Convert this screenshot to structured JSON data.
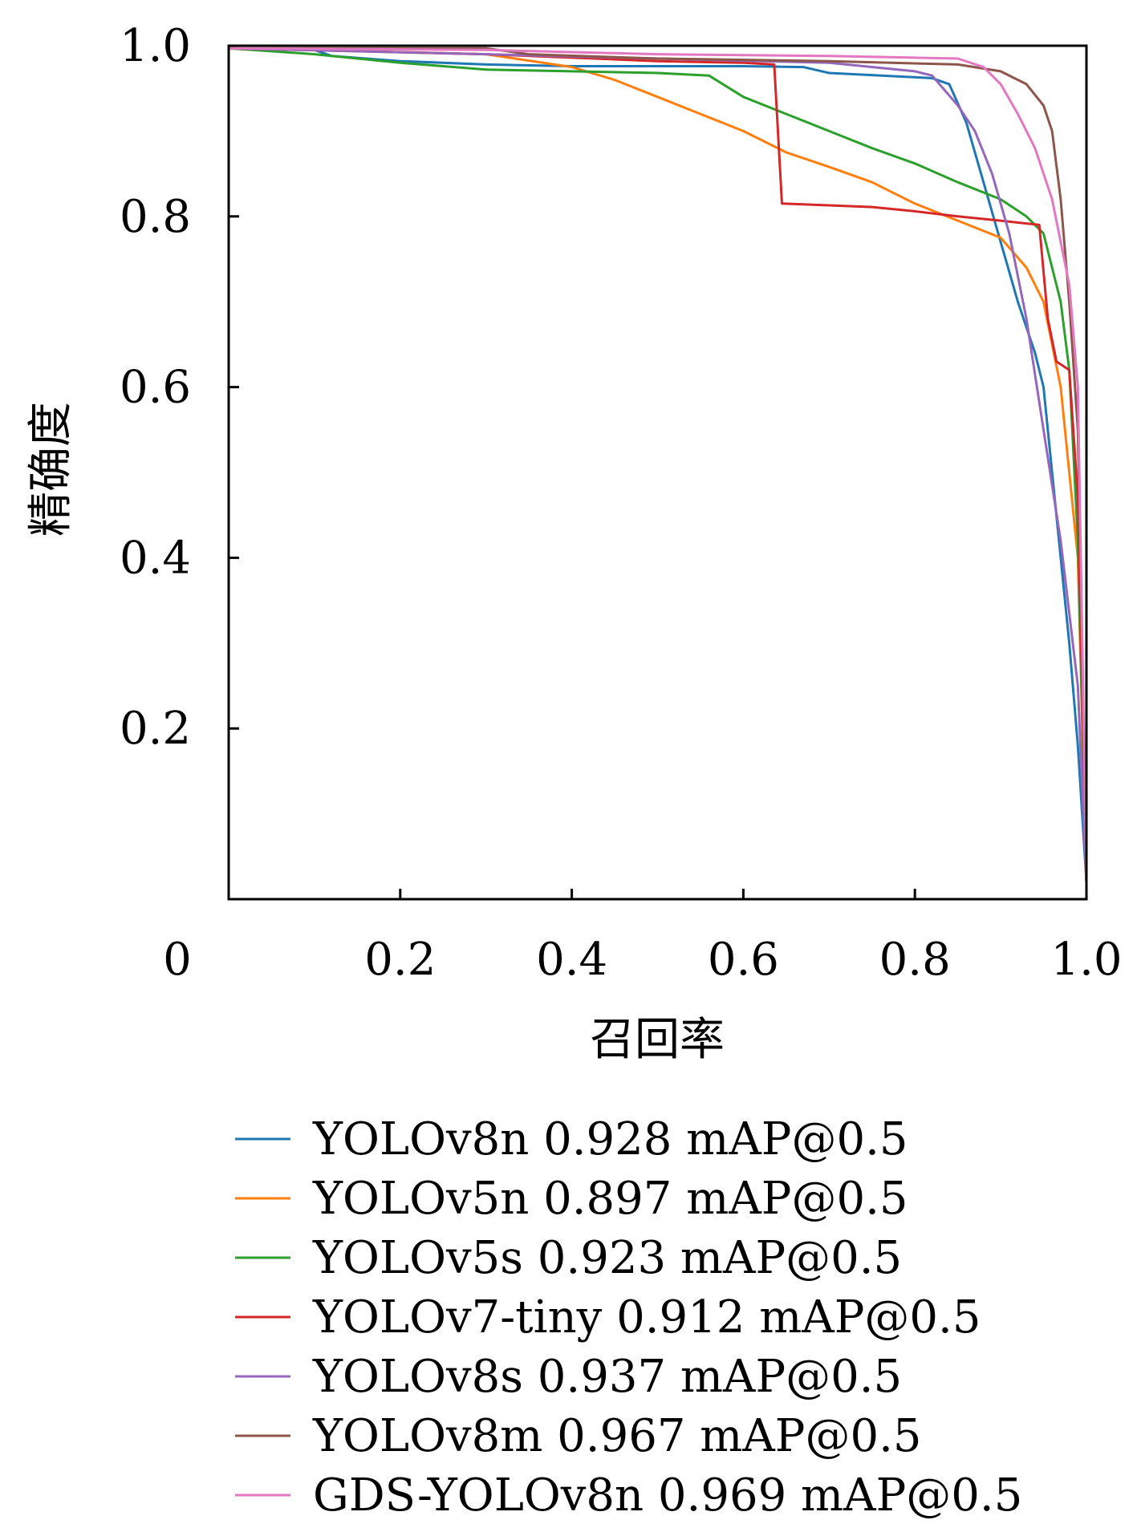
{
  "chart_data": {
    "type": "line",
    "title": "",
    "xlabel": "召回率",
    "ylabel": "精确度",
    "xlim": [
      0,
      1
    ],
    "ylim": [
      0,
      1
    ],
    "x_origin_label": "0",
    "xticks": [
      "0.2",
      "0.4",
      "0.6",
      "0.8",
      "1.0"
    ],
    "yticks": [
      "0.2",
      "0.4",
      "0.6",
      "0.8",
      "1.0"
    ],
    "grid": false,
    "legend_position": "below",
    "series": [
      {
        "name": "YOLOv8n 0.928 mAP@0.5",
        "color": "#1f77b4",
        "points": [
          [
            0,
            0.997
          ],
          [
            0.1,
            0.995
          ],
          [
            0.12,
            0.988
          ],
          [
            0.2,
            0.982
          ],
          [
            0.3,
            0.978
          ],
          [
            0.4,
            0.976
          ],
          [
            0.6,
            0.976
          ],
          [
            0.67,
            0.975
          ],
          [
            0.7,
            0.968
          ],
          [
            0.82,
            0.962
          ],
          [
            0.84,
            0.955
          ],
          [
            0.86,
            0.91
          ],
          [
            0.88,
            0.84
          ],
          [
            0.9,
            0.77
          ],
          [
            0.92,
            0.7
          ],
          [
            0.94,
            0.64
          ],
          [
            0.95,
            0.6
          ],
          [
            0.96,
            0.5
          ],
          [
            0.97,
            0.4
          ],
          [
            0.98,
            0.3
          ],
          [
            0.99,
            0.18
          ],
          [
            1.0,
            0.02
          ]
        ]
      },
      {
        "name": "YOLOv5n 0.897 mAP@0.5",
        "color": "#ff7f0e",
        "points": [
          [
            0,
            0.997
          ],
          [
            0.1,
            0.995
          ],
          [
            0.3,
            0.99
          ],
          [
            0.4,
            0.975
          ],
          [
            0.45,
            0.96
          ],
          [
            0.5,
            0.94
          ],
          [
            0.55,
            0.92
          ],
          [
            0.6,
            0.9
          ],
          [
            0.65,
            0.875
          ],
          [
            0.7,
            0.858
          ],
          [
            0.75,
            0.84
          ],
          [
            0.8,
            0.815
          ],
          [
            0.85,
            0.795
          ],
          [
            0.9,
            0.775
          ],
          [
            0.93,
            0.74
          ],
          [
            0.95,
            0.7
          ],
          [
            0.97,
            0.6
          ],
          [
            0.98,
            0.5
          ],
          [
            0.99,
            0.4
          ],
          [
            1.0,
            0.02
          ]
        ]
      },
      {
        "name": "YOLOv5s 0.923 mAP@0.5",
        "color": "#2ca02c",
        "points": [
          [
            0,
            0.997
          ],
          [
            0.1,
            0.99
          ],
          [
            0.2,
            0.98
          ],
          [
            0.3,
            0.972
          ],
          [
            0.4,
            0.97
          ],
          [
            0.5,
            0.968
          ],
          [
            0.56,
            0.965
          ],
          [
            0.6,
            0.94
          ],
          [
            0.65,
            0.92
          ],
          [
            0.7,
            0.9
          ],
          [
            0.75,
            0.88
          ],
          [
            0.8,
            0.862
          ],
          [
            0.85,
            0.84
          ],
          [
            0.9,
            0.82
          ],
          [
            0.93,
            0.8
          ],
          [
            0.95,
            0.78
          ],
          [
            0.97,
            0.7
          ],
          [
            0.98,
            0.62
          ],
          [
            0.99,
            0.42
          ],
          [
            1.0,
            0.02
          ]
        ]
      },
      {
        "name": "YOLOv7-tiny 0.912 mAP@0.5",
        "color": "#d62728",
        "points": [
          [
            0,
            0.997
          ],
          [
            0.3,
            0.99
          ],
          [
            0.5,
            0.982
          ],
          [
            0.6,
            0.98
          ],
          [
            0.636,
            0.978
          ],
          [
            0.645,
            0.815
          ],
          [
            0.7,
            0.813
          ],
          [
            0.75,
            0.811
          ],
          [
            0.8,
            0.806
          ],
          [
            0.85,
            0.8
          ],
          [
            0.9,
            0.795
          ],
          [
            0.945,
            0.79
          ],
          [
            0.955,
            0.68
          ],
          [
            0.965,
            0.63
          ],
          [
            0.98,
            0.62
          ],
          [
            0.99,
            0.47
          ],
          [
            1.0,
            0.02
          ]
        ]
      },
      {
        "name": "YOLOv8s 0.937 mAP@0.5",
        "color": "#9467bd",
        "points": [
          [
            0,
            0.997
          ],
          [
            0.3,
            0.99
          ],
          [
            0.5,
            0.985
          ],
          [
            0.7,
            0.98
          ],
          [
            0.8,
            0.97
          ],
          [
            0.82,
            0.965
          ],
          [
            0.85,
            0.93
          ],
          [
            0.87,
            0.9
          ],
          [
            0.89,
            0.85
          ],
          [
            0.91,
            0.78
          ],
          [
            0.93,
            0.68
          ],
          [
            0.95,
            0.55
          ],
          [
            0.97,
            0.42
          ],
          [
            0.99,
            0.25
          ],
          [
            1.0,
            0.02
          ]
        ]
      },
      {
        "name": "YOLOv8m 0.967 mAP@0.5",
        "color": "#8c564b",
        "points": [
          [
            0,
            0.997
          ],
          [
            0.3,
            0.997
          ],
          [
            0.35,
            0.99
          ],
          [
            0.5,
            0.985
          ],
          [
            0.7,
            0.982
          ],
          [
            0.85,
            0.978
          ],
          [
            0.9,
            0.97
          ],
          [
            0.93,
            0.955
          ],
          [
            0.95,
            0.93
          ],
          [
            0.96,
            0.9
          ],
          [
            0.97,
            0.82
          ],
          [
            0.98,
            0.7
          ],
          [
            0.99,
            0.55
          ],
          [
            1.0,
            0.02
          ]
        ]
      },
      {
        "name": "GDS-YOLOv8n 0.969 mAP@0.5",
        "color": "#e377c2",
        "points": [
          [
            0,
            0.997
          ],
          [
            0.3,
            0.995
          ],
          [
            0.5,
            0.99
          ],
          [
            0.7,
            0.988
          ],
          [
            0.85,
            0.985
          ],
          [
            0.88,
            0.975
          ],
          [
            0.9,
            0.955
          ],
          [
            0.92,
            0.92
          ],
          [
            0.94,
            0.88
          ],
          [
            0.96,
            0.82
          ],
          [
            0.98,
            0.72
          ],
          [
            0.99,
            0.6
          ],
          [
            1.0,
            0.02
          ]
        ]
      }
    ]
  }
}
